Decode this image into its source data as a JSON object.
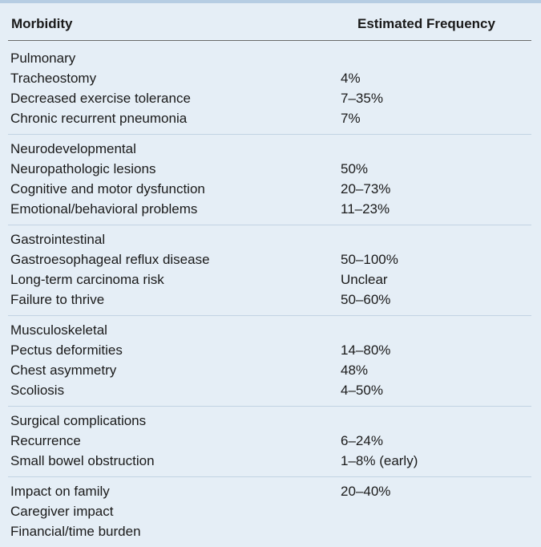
{
  "header": {
    "col_morbidity": "Morbidity",
    "col_frequency": "Estimated Frequency"
  },
  "groups": [
    {
      "rows": [
        {
          "label": "Pulmonary",
          "value": ""
        },
        {
          "label": "Tracheostomy",
          "value": "4%"
        },
        {
          "label": "Decreased exercise tolerance",
          "value": "7–35%"
        },
        {
          "label": "Chronic recurrent pneumonia",
          "value": "7%"
        }
      ]
    },
    {
      "rows": [
        {
          "label": "Neurodevelopmental",
          "value": ""
        },
        {
          "label": "Neuropathologic lesions",
          "value": "50%"
        },
        {
          "label": "Cognitive and motor dysfunction",
          "value": "20–73%"
        },
        {
          "label": "Emotional/behavioral problems",
          "value": "11–23%"
        }
      ]
    },
    {
      "rows": [
        {
          "label": "Gastrointestinal",
          "value": ""
        },
        {
          "label": "Gastroesophageal reflux disease",
          "value": "50–100%"
        },
        {
          "label": "Long-term carcinoma risk",
          "value": "Unclear"
        },
        {
          "label": "Failure to thrive",
          "value": "50–60%"
        }
      ]
    },
    {
      "rows": [
        {
          "label": "Musculoskeletal",
          "value": ""
        },
        {
          "label": "Pectus deformities",
          "value": "14–80%"
        },
        {
          "label": "Chest asymmetry",
          "value": "48%"
        },
        {
          "label": "Scoliosis",
          "value": "4–50%"
        }
      ]
    },
    {
      "rows": [
        {
          "label": "Surgical complications",
          "value": ""
        },
        {
          "label": "Recurrence",
          "value": "6–24%"
        },
        {
          "label": "Small bowel obstruction",
          "value": "1–8% (early)"
        }
      ]
    },
    {
      "rows": [
        {
          "label": "Impact on family",
          "value": "20–40%"
        },
        {
          "label": "Caregiver impact",
          "value": ""
        },
        {
          "label": "Financial/time burden",
          "value": ""
        }
      ]
    }
  ]
}
